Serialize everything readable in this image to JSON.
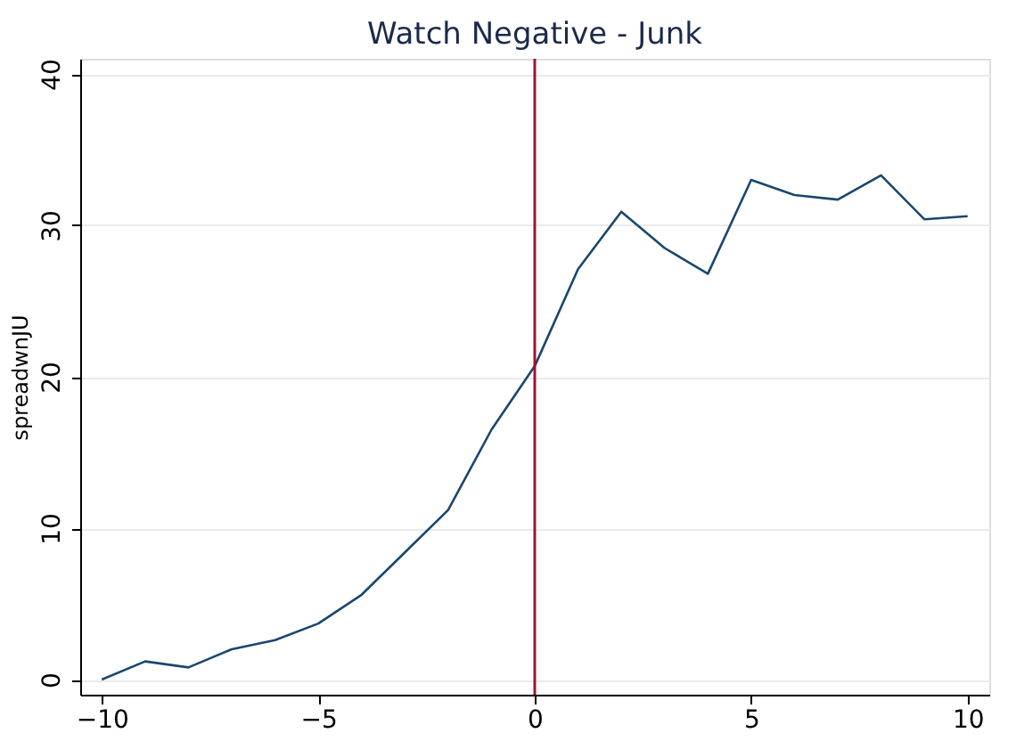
{
  "chart_data": {
    "type": "line",
    "title": "Watch Negative - Junk",
    "ylabel": "spreadwnJU",
    "x": [
      -10,
      -9,
      -8,
      -7,
      -6,
      -5,
      -4,
      -3,
      -2,
      -1,
      0,
      1,
      2,
      3,
      4,
      5,
      6,
      7,
      8,
      9,
      10
    ],
    "series": [
      {
        "color": "#1a476f",
        "values": [
          0,
          1.2,
          0.8,
          2.0,
          2.6,
          3.7,
          5.6,
          8.4,
          11.2,
          16.5,
          20.7,
          27.1,
          30.9,
          28.5,
          26.8,
          33.0,
          32.0,
          31.7,
          33.3,
          30.4,
          30.6
        ]
      }
    ],
    "xlim": [
      -10.5,
      10.5
    ],
    "ylim": [
      -1,
      41
    ],
    "xticks": [
      -10,
      -5,
      0,
      5,
      10
    ],
    "yticks": [
      0,
      10,
      20,
      30,
      40
    ],
    "grid": "y",
    "marker": "none",
    "line_style": "solid",
    "ref_lines": [
      {
        "axis": "x",
        "value": 0,
        "color": "#a0142d"
      }
    ]
  }
}
